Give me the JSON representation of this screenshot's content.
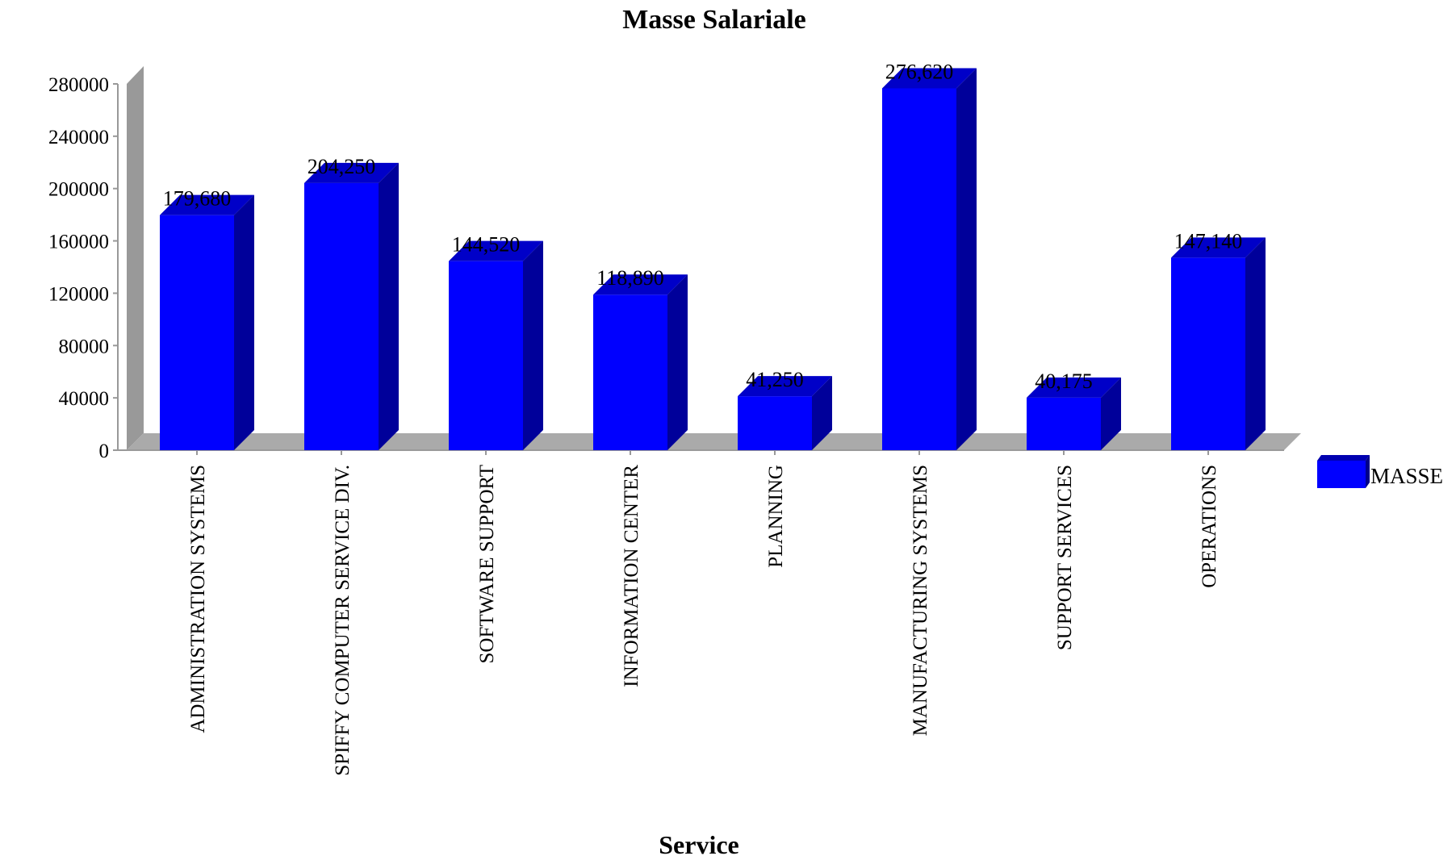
{
  "chart_data": {
    "type": "bar",
    "title": "Masse Salariale",
    "xlabel": "Service",
    "ylabel": "",
    "ylim": [
      0,
      280000
    ],
    "yticks": [
      0,
      40000,
      80000,
      120000,
      160000,
      200000,
      240000,
      280000
    ],
    "categories": [
      "ADMINISTRATION SYSTEMS",
      "SPIFFY COMPUTER SERVICE DIV.",
      "SOFTWARE SUPPORT",
      "INFORMATION CENTER",
      "PLANNING",
      "MANUFACTURING SYSTEMS",
      "SUPPORT SERVICES",
      "OPERATIONS"
    ],
    "series": [
      {
        "name": "MASSE",
        "values": [
          179680,
          204250,
          144520,
          118890,
          41250,
          276620,
          40175,
          147140
        ],
        "labels": [
          "179,680",
          "204,250",
          "144,520",
          "118,890",
          "41,250",
          "276,620",
          "40,175",
          "147,140"
        ],
        "color": "#0000ff"
      }
    ],
    "legend": "right",
    "grid": false,
    "style": "3d"
  }
}
